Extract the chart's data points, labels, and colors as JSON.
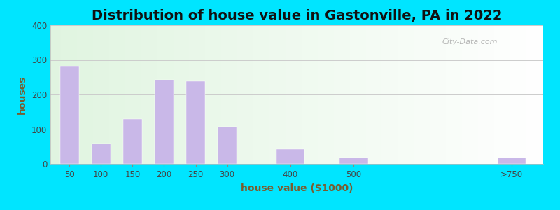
{
  "title": "Distribution of house value in Gastonville, PA in 2022",
  "xlabel": "house value ($1000)",
  "ylabel": "houses",
  "bar_labels": [
    "50",
    "100",
    "150",
    "200",
    "250",
    "300",
    "400",
    "500",
    ">750"
  ],
  "bar_values": [
    280,
    58,
    130,
    243,
    238,
    108,
    42,
    18,
    18
  ],
  "bar_positions": [
    50,
    100,
    150,
    200,
    250,
    300,
    400,
    500,
    750
  ],
  "bar_widths": [
    40,
    40,
    40,
    40,
    40,
    40,
    60,
    60,
    60
  ],
  "bar_color": "#c9b8e8",
  "bar_edgecolor": "#c9b8e8",
  "ylim": [
    0,
    400
  ],
  "yticks": [
    0,
    100,
    200,
    300,
    400
  ],
  "xtick_positions": [
    50,
    100,
    150,
    200,
    250,
    300,
    400,
    500,
    750
  ],
  "xtick_labels": [
    "50",
    "100",
    "150",
    "200",
    "250",
    "300",
    "400",
    "500",
    ">750"
  ],
  "xlim": [
    20,
    800
  ],
  "background_outer": "#00e5ff",
  "title_fontsize": 14,
  "axis_label_color": "#6b6b3a",
  "tick_color": "#444444",
  "watermark_text": "City-Data.com",
  "watermark_color": "#aaaaaa",
  "grid_color": "#cccccc"
}
